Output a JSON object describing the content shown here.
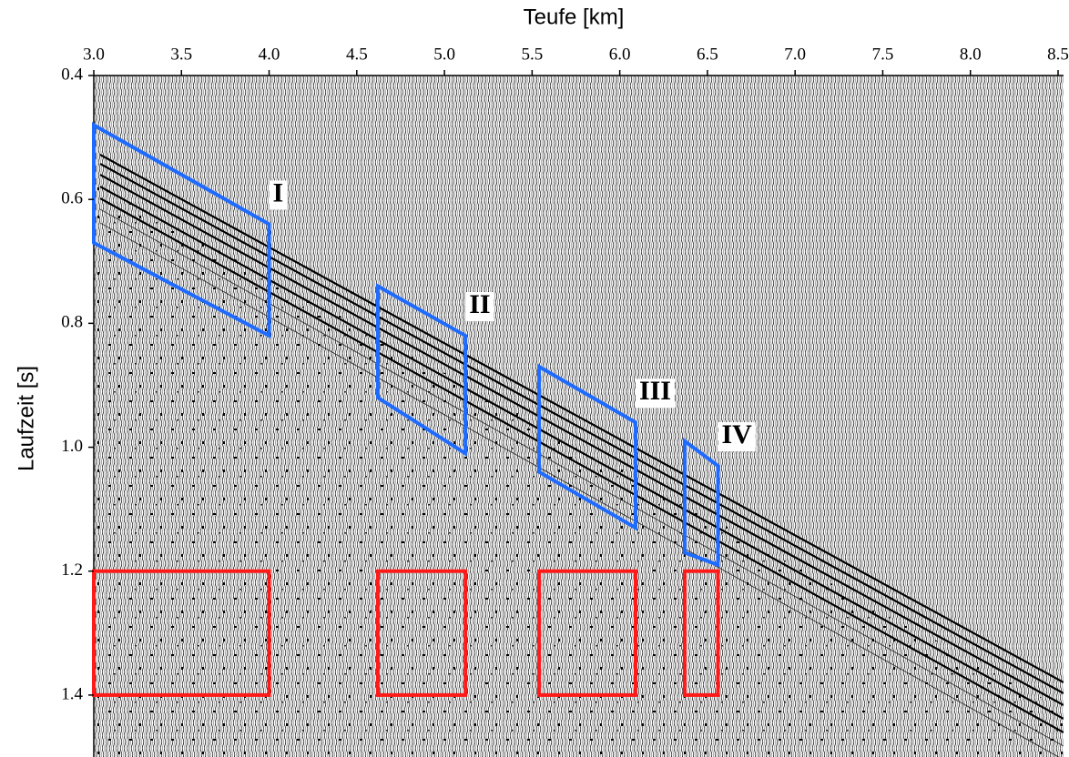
{
  "chart_data": {
    "type": "seismic-section",
    "xlabel": "Teufe [km]",
    "ylabel": "Laufzeit [s]",
    "xlim": [
      3.0,
      8.5
    ],
    "ylim": [
      0.4,
      1.5
    ],
    "xticks": [
      {
        "value": 3,
        "label": "3.0"
      },
      3.5,
      {
        "value": 4,
        "label": "4.0"
      },
      4.5,
      {
        "value": 5,
        "label": "5.0"
      },
      5.5,
      {
        "value": 6,
        "label": "6.0"
      },
      6.5,
      {
        "value": 7,
        "label": "7.0"
      },
      7.5,
      {
        "value": 8,
        "label": "8.0"
      },
      8.5
    ],
    "yticks": [
      0.4,
      0.6,
      0.8,
      {
        "value": 1,
        "label": "1.0"
      },
      1.2,
      1.4
    ],
    "y_inverted": true,
    "signal_color": "#1f6bff",
    "noise_color": "#ff1a1a",
    "signal_windows": [
      {
        "label": "I",
        "x": [
          3.0,
          4.0
        ],
        "top": [
          0.48,
          0.64
        ],
        "bottom": [
          0.67,
          0.82
        ]
      },
      {
        "label": "II",
        "x": [
          4.62,
          5.12
        ],
        "top": [
          0.74,
          0.82
        ],
        "bottom": [
          0.92,
          1.01
        ]
      },
      {
        "label": "III",
        "x": [
          5.54,
          6.09
        ],
        "top": [
          0.87,
          0.96
        ],
        "bottom": [
          1.04,
          1.13
        ]
      },
      {
        "label": "IV",
        "x": [
          6.37,
          6.56
        ],
        "top": [
          0.99,
          1.03
        ],
        "bottom": [
          1.17,
          1.19
        ]
      }
    ],
    "noise_windows": [
      {
        "x": [
          3.0,
          4.0
        ],
        "y": [
          1.2,
          1.4
        ]
      },
      {
        "x": [
          4.62,
          5.12
        ],
        "y": [
          1.2,
          1.4
        ]
      },
      {
        "x": [
          5.54,
          6.09
        ],
        "y": [
          1.2,
          1.4
        ]
      },
      {
        "x": [
          6.37,
          6.56
        ],
        "y": [
          1.2,
          1.4
        ]
      }
    ]
  }
}
